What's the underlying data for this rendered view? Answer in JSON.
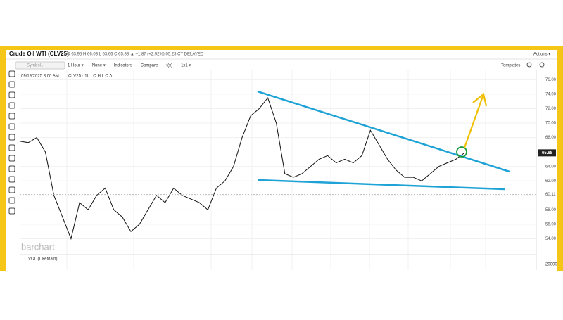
{
  "header": {
    "title": "Crude Oil WTI (CLV25)",
    "quote": "O 63.95 H 66.03 L 63.66 C 65.88 ▲ +1.87 (+2.92%) 05:23 CT DELAYED",
    "actions": "Actions ▾"
  },
  "toolbar": {
    "search": "Symbol...",
    "items": [
      "1 Hour ▾",
      "None ▾",
      "Indicators",
      "Compare",
      "f(x)",
      "1x1 ▾"
    ],
    "templates": "Templates"
  },
  "legend": {
    "date": "09/19/2025 3:00 AM",
    "symbol": "CLV25 · 1h · O H L C Δ"
  },
  "chart": {
    "values": [
      67.5,
      67.3,
      68,
      66,
      60,
      57,
      54,
      59,
      58,
      60,
      61,
      58,
      57,
      55,
      56,
      58,
      60,
      59,
      61,
      60,
      59.5,
      59,
      58,
      61,
      62,
      64,
      68,
      71,
      72,
      73.5,
      70,
      63,
      62.5,
      63,
      64,
      65,
      65.5,
      64.5,
      65,
      64.5,
      65.5,
      69,
      67,
      65,
      63.5,
      62.5,
      62.5,
      62,
      63,
      64,
      64.5,
      65,
      65.88
    ],
    "ylim": [
      52,
      77.3
    ],
    "yticks": [
      {
        "value": 76,
        "label": "76.00"
      },
      {
        "value": 74,
        "label": "74.00"
      },
      {
        "value": 72,
        "label": "72.00"
      },
      {
        "value": 70,
        "label": "70.00"
      },
      {
        "value": 68,
        "label": "68.00"
      },
      {
        "value": 64,
        "label": "64.00"
      },
      {
        "value": 62,
        "label": "62.00"
      },
      {
        "value": 58,
        "label": "58.00"
      },
      {
        "value": 56,
        "label": "56.00"
      },
      {
        "value": 54,
        "label": "54.00"
      }
    ],
    "last_price": {
      "value": 65.88,
      "label": "65.88"
    },
    "marker": {
      "value": 60.11,
      "label": "60.11"
    },
    "watermark": "barchart"
  },
  "volume": {
    "label": "VOL (LikeMain)",
    "axis_label": "20000"
  }
}
